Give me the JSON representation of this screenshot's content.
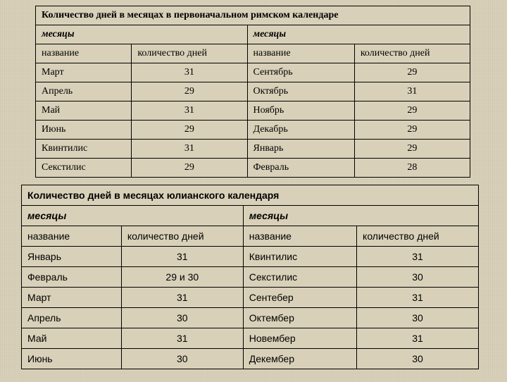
{
  "table1": {
    "title": "Количество дней  в месяцах в первоначальном римском календаре",
    "subhead_left": "месяцы",
    "subhead_right": "месяцы",
    "col1": "название",
    "col2": "количество дней",
    "col3": "название",
    "col4": "количество дней",
    "rows": [
      {
        "m1": "Март",
        "d1": "31",
        "m2": "Сентябрь",
        "d2": "29"
      },
      {
        "m1": "Апрель",
        "d1": "29",
        "m2": "Октябрь",
        "d2": "31"
      },
      {
        "m1": "Май",
        "d1": "31",
        "m2": "Ноябрь",
        "d2": "29"
      },
      {
        "m1": "Июнь",
        "d1": "29",
        "m2": "Декабрь",
        "d2": "29"
      },
      {
        "m1": "Квинтилис",
        "d1": "31",
        "m2": "Январь",
        "d2": "29"
      },
      {
        "m1": "Секстилис",
        "d1": "29",
        "m2": "Февраль",
        "d2": "28"
      }
    ]
  },
  "table2": {
    "title": "Количество дней в месяцах юлианского  календаря",
    "subhead_left": "месяцы",
    "subhead_right": "месяцы",
    "col1": "название",
    "col2": "количество дней",
    "col3": "название",
    "col4": "количество дней",
    "rows": [
      {
        "m1": "Январь",
        "d1": "31",
        "m2": "Квинтилис",
        "d2": "31"
      },
      {
        "m1": "Февраль",
        "d1": "29 и 30",
        "m2": "Секстилис",
        "d2": "30"
      },
      {
        "m1": "Март",
        "d1": "31",
        "m2": "Сентебер",
        "d2": "31"
      },
      {
        "m1": "Апрель",
        "d1": "30",
        "m2": "Октембер",
        "d2": "30"
      },
      {
        "m1": "Май",
        "d1": "31",
        "m2": "Новембер",
        "d2": "31"
      },
      {
        "m1": "Июнь",
        "d1": "30",
        "m2": "Декембер",
        "d2": "30"
      }
    ]
  }
}
